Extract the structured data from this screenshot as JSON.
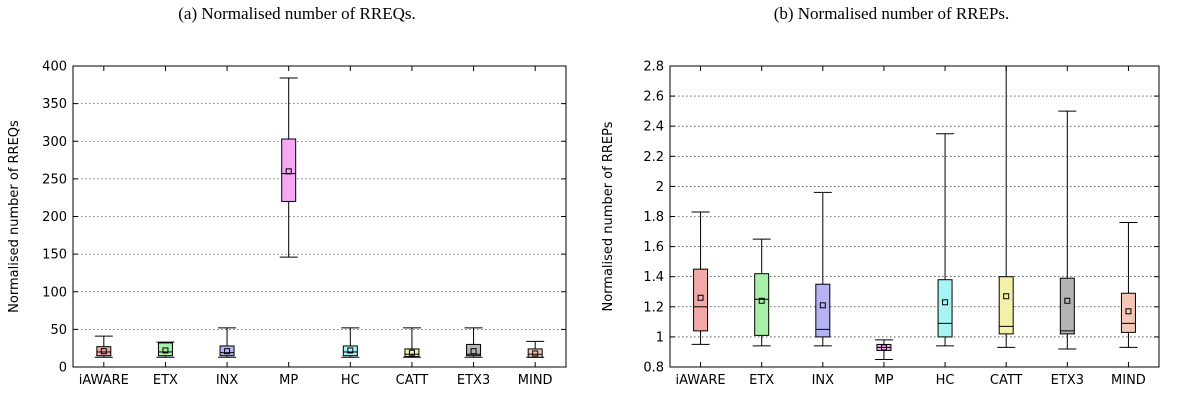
{
  "chart_data": [
    {
      "type": "box",
      "title": "(a) Normalised number of RREQs.",
      "xlabel": "",
      "ylabel": "Normalised number of RREQs",
      "ylim": [
        0,
        400
      ],
      "yticks": [
        0,
        50,
        100,
        150,
        200,
        250,
        300,
        350,
        400
      ],
      "ytick_labels": [
        "0",
        "50",
        "100",
        "150",
        "200",
        "250",
        "300",
        "350",
        "400"
      ],
      "grid": "horizontal dotted",
      "categories": [
        "iAWARE",
        "ETX",
        "INX",
        "MP",
        "HC",
        "CATT",
        "ETX3",
        "MIND"
      ],
      "boxes": [
        {
          "min": 13,
          "q1": 15,
          "median": 20,
          "q3": 27,
          "max": 41,
          "mean": 21
        },
        {
          "min": 13,
          "q1": 15,
          "median": 20,
          "q3": 32,
          "max": 33,
          "mean": 22
        },
        {
          "min": 13,
          "q1": 15,
          "median": 19,
          "q3": 28,
          "max": 52,
          "mean": 21
        },
        {
          "min": 146,
          "q1": 220,
          "median": 257,
          "q3": 303,
          "max": 384,
          "mean": 260
        },
        {
          "min": 13,
          "q1": 15,
          "median": 20,
          "q3": 28,
          "max": 52,
          "mean": 22
        },
        {
          "min": 13,
          "q1": 14,
          "median": 17,
          "q3": 24,
          "max": 52,
          "mean": 19
        },
        {
          "min": 13,
          "q1": 15,
          "median": 17,
          "q3": 30,
          "max": 52,
          "mean": 21
        },
        {
          "min": 13,
          "q1": 13,
          "median": 17,
          "q3": 24,
          "max": 34,
          "mean": 18
        }
      ]
    },
    {
      "type": "box",
      "title": "(b) Normalised number of RREPs.",
      "xlabel": "",
      "ylabel": "Normalised number of RREPs",
      "ylim": [
        0.8,
        2.8
      ],
      "yticks": [
        0.8,
        1.0,
        1.2,
        1.4,
        1.6,
        1.8,
        2.0,
        2.2,
        2.4,
        2.6,
        2.8
      ],
      "ytick_labels": [
        "0.8",
        "1",
        "1.2",
        "1.4",
        "1.6",
        "1.8",
        "2",
        "2.2",
        "2.4",
        "2.6",
        "2.8"
      ],
      "grid": "horizontal dotted",
      "categories": [
        "iAWARE",
        "ETX",
        "INX",
        "MP",
        "HC",
        "CATT",
        "ETX3",
        "MIND"
      ],
      "boxes": [
        {
          "min": 0.95,
          "q1": 1.04,
          "median": 1.2,
          "q3": 1.45,
          "max": 1.83,
          "mean": 1.26
        },
        {
          "min": 0.94,
          "q1": 1.01,
          "median": 1.25,
          "q3": 1.42,
          "max": 1.65,
          "mean": 1.24
        },
        {
          "min": 0.94,
          "q1": 1.0,
          "median": 1.05,
          "q3": 1.35,
          "max": 1.96,
          "mean": 1.21
        },
        {
          "min": 0.85,
          "q1": 0.91,
          "median": 0.93,
          "q3": 0.95,
          "max": 0.98,
          "mean": 0.93
        },
        {
          "min": 0.94,
          "q1": 1.0,
          "median": 1.09,
          "q3": 1.38,
          "max": 2.35,
          "mean": 1.23
        },
        {
          "min": 0.93,
          "q1": 1.02,
          "median": 1.07,
          "q3": 1.4,
          "max": 2.8,
          "mean": 1.27
        },
        {
          "min": 0.92,
          "q1": 1.02,
          "median": 1.04,
          "q3": 1.39,
          "max": 2.5,
          "mean": 1.24
        },
        {
          "min": 0.93,
          "q1": 1.03,
          "median": 1.09,
          "q3": 1.29,
          "max": 1.76,
          "mean": 1.17
        }
      ]
    }
  ],
  "colors": {
    "boxes": [
      "#f4a8a8",
      "#a8f0a8",
      "#b4b4f4",
      "#f4a8f4",
      "#a8f4f4",
      "#f4f0a8",
      "#b4b4b4",
      "#f4c8b4"
    ]
  }
}
